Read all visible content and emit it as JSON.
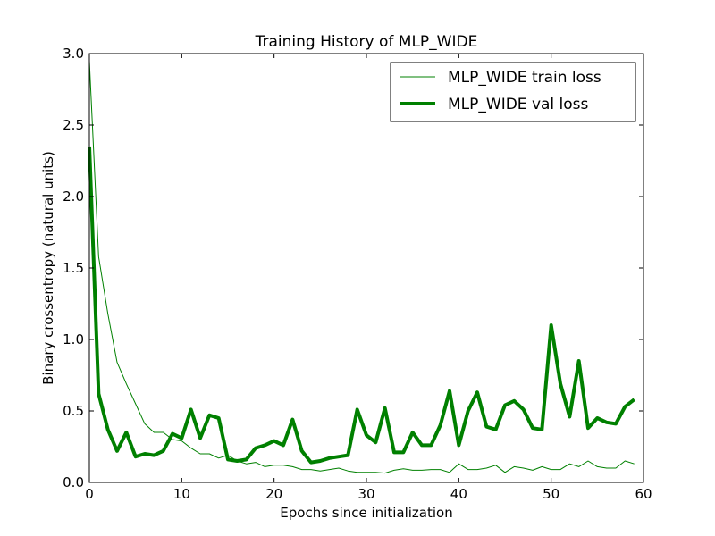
{
  "chart_data": {
    "type": "line",
    "title": "Training History of MLP_WIDE",
    "xlabel": "Epochs since initialization",
    "ylabel": "Binary crossentropy (natural units)",
    "xlim": [
      0,
      60
    ],
    "ylim": [
      0.0,
      3.0
    ],
    "x_ticks": [
      "0",
      "10",
      "20",
      "30",
      "40",
      "50",
      "60"
    ],
    "y_ticks": [
      "0.0",
      "0.5",
      "1.0",
      "1.5",
      "2.0",
      "2.5",
      "3.0"
    ],
    "grid": false,
    "legend_position": "top-right",
    "x": [
      0,
      1,
      2,
      3,
      4,
      5,
      6,
      7,
      8,
      9,
      10,
      11,
      12,
      13,
      14,
      15,
      16,
      17,
      18,
      19,
      20,
      21,
      22,
      23,
      24,
      25,
      26,
      27,
      28,
      29,
      30,
      31,
      32,
      33,
      34,
      35,
      36,
      37,
      38,
      39,
      40,
      41,
      42,
      43,
      44,
      45,
      46,
      47,
      48,
      49,
      50,
      51,
      52,
      53,
      54,
      55,
      56,
      57,
      58,
      59
    ],
    "series": [
      {
        "name": "MLP_WIDE train loss",
        "color": "#008000",
        "line_width": "thin",
        "values": [
          2.95,
          1.58,
          1.18,
          0.84,
          0.69,
          0.55,
          0.41,
          0.35,
          0.35,
          0.3,
          0.29,
          0.24,
          0.2,
          0.2,
          0.17,
          0.19,
          0.15,
          0.13,
          0.14,
          0.11,
          0.12,
          0.12,
          0.11,
          0.09,
          0.09,
          0.08,
          0.09,
          0.1,
          0.08,
          0.07,
          0.07,
          0.07,
          0.065,
          0.085,
          0.095,
          0.085,
          0.085,
          0.09,
          0.09,
          0.07,
          0.13,
          0.09,
          0.09,
          0.1,
          0.12,
          0.07,
          0.11,
          0.1,
          0.085,
          0.11,
          0.09,
          0.09,
          0.13,
          0.11,
          0.15,
          0.11,
          0.1,
          0.1,
          0.15,
          0.13
        ]
      },
      {
        "name": "MLP_WIDE val loss",
        "color": "#008000",
        "line_width": "thick",
        "values": [
          2.35,
          0.62,
          0.37,
          0.22,
          0.35,
          0.18,
          0.2,
          0.19,
          0.22,
          0.34,
          0.31,
          0.51,
          0.31,
          0.47,
          0.45,
          0.16,
          0.15,
          0.16,
          0.24,
          0.26,
          0.29,
          0.26,
          0.44,
          0.22,
          0.14,
          0.15,
          0.17,
          0.18,
          0.19,
          0.51,
          0.33,
          0.28,
          0.52,
          0.21,
          0.21,
          0.35,
          0.26,
          0.26,
          0.4,
          0.64,
          0.26,
          0.5,
          0.63,
          0.39,
          0.37,
          0.54,
          0.57,
          0.51,
          0.38,
          0.37,
          1.1,
          0.69,
          0.46,
          0.85,
          0.38,
          0.45,
          0.42,
          0.41,
          0.53,
          0.58
        ]
      }
    ]
  }
}
